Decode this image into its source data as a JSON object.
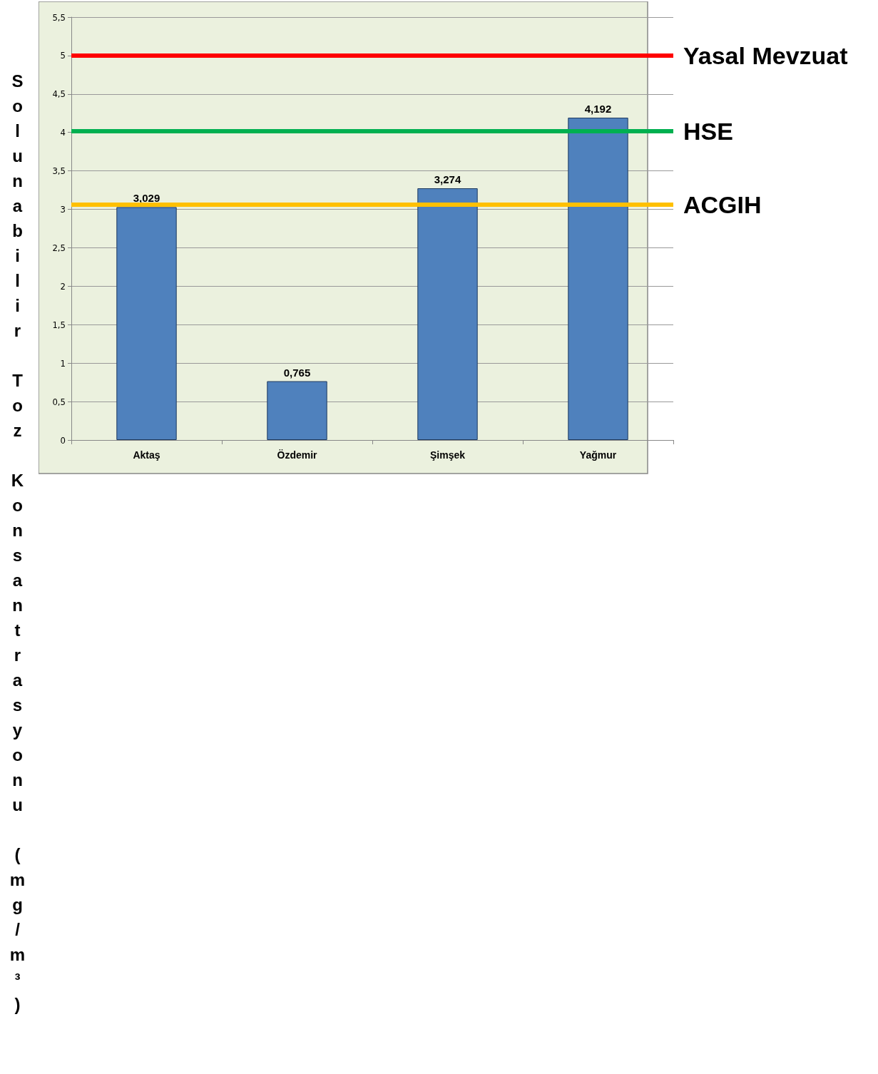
{
  "chart_data": {
    "type": "bar",
    "ylabel": "Solunabilir Toz Konsantrasyonu (mg/m³)",
    "categories": [
      "Aktaş",
      "Özdemir",
      "Şimşek",
      "Yağmur"
    ],
    "values": [
      3.029,
      0.765,
      3.274,
      4.192
    ],
    "color": "#4f81bd",
    "data_labels": true,
    "value_labels": [
      "3,029",
      "0,765",
      "3,274",
      "4,192"
    ],
    "ylim": [
      0,
      5.5
    ],
    "yticks": [
      0,
      {
        "value": 0.5,
        "label": "0,5"
      },
      1,
      {
        "value": 1.5,
        "label": "1,5"
      },
      2,
      {
        "value": 2.5,
        "label": "2,5"
      },
      3,
      {
        "value": 3.5,
        "label": "3,5"
      },
      4,
      {
        "value": 4.5,
        "label": "4,5"
      },
      5,
      {
        "value": 5.5,
        "label": "5,5"
      }
    ],
    "grid": "y",
    "ref_lines": [
      {
        "axis": "y",
        "value": 5,
        "label": "Yasal Mevzuat",
        "color": "#ff0000"
      },
      {
        "axis": "y",
        "value": 4.02,
        "label": "HSE",
        "color": "#00b050"
      },
      {
        "axis": "y",
        "value": 3.06,
        "label": "ACGIH",
        "color": "#ffc000"
      }
    ]
  }
}
